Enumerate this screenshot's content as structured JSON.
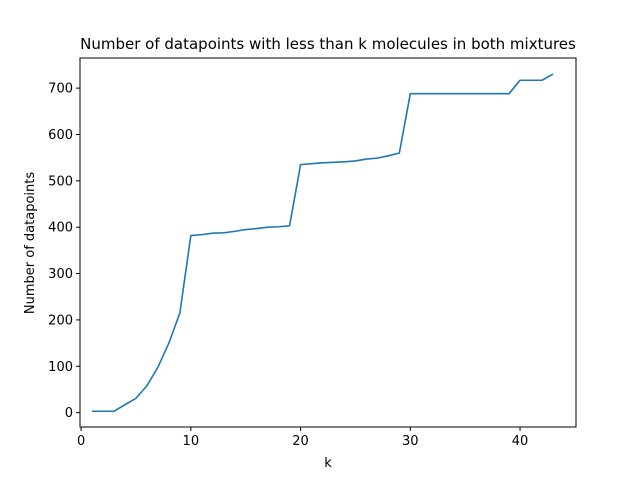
{
  "chart_data": {
    "type": "line",
    "title": "Number of datapoints with less than k molecules in both mixtures",
    "xlabel": "k",
    "ylabel": "Number of datapoints",
    "xlim": [
      -0.1,
      45.1
    ],
    "ylim": [
      -31,
      765
    ],
    "xticks": [
      0,
      10,
      20,
      30,
      40
    ],
    "yticks": [
      0,
      100,
      200,
      300,
      400,
      500,
      600,
      700
    ],
    "grid": false,
    "series": [
      {
        "color": "#1f77b4",
        "x": [
          1,
          2,
          3,
          4,
          5,
          6,
          7,
          8,
          9,
          10,
          11,
          12,
          13,
          14,
          15,
          16,
          17,
          18,
          19,
          20,
          21,
          22,
          23,
          24,
          25,
          26,
          27,
          28,
          29,
          30,
          31,
          32,
          33,
          34,
          35,
          36,
          37,
          38,
          39,
          40,
          41,
          42,
          43
        ],
        "y": [
          3,
          3,
          3,
          17,
          31,
          58,
          98,
          150,
          215,
          382,
          384,
          387,
          388,
          391,
          395,
          397,
          400,
          401,
          403,
          535,
          537,
          539,
          540,
          541,
          543,
          547,
          549,
          554,
          560,
          688,
          688,
          688,
          688,
          688,
          688,
          688,
          688,
          688,
          688,
          717,
          717,
          717,
          730
        ]
      }
    ]
  }
}
